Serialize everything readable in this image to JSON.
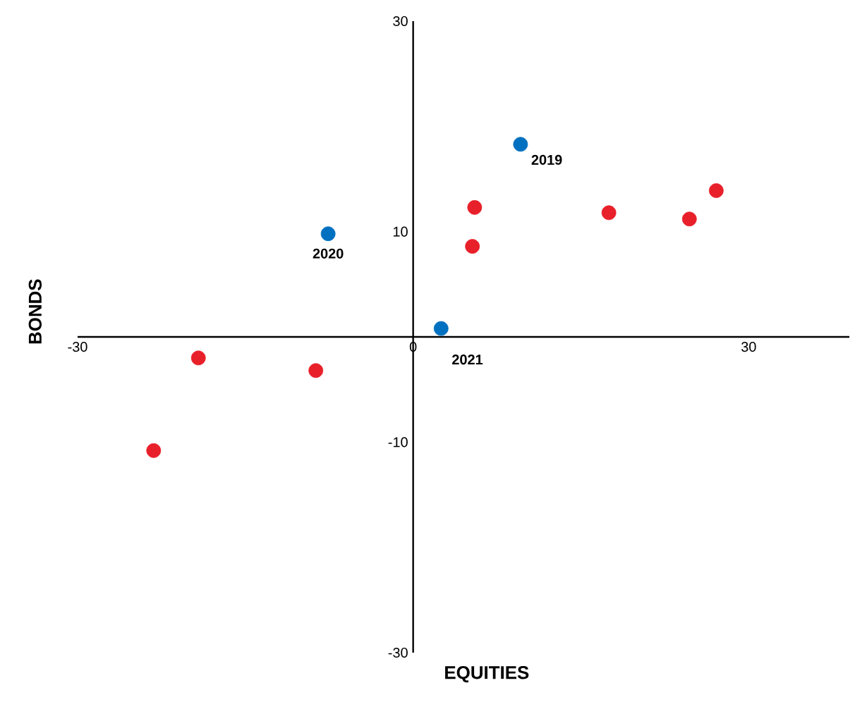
{
  "chart_data": {
    "type": "scatter",
    "xlabel": "EQUITIES",
    "ylabel": "BONDS",
    "xlim": [
      -30,
      39
    ],
    "ylim": [
      -30,
      30
    ],
    "xticks": [
      -30,
      0,
      30
    ],
    "yticks": [
      -30,
      -10,
      10,
      30
    ],
    "grid": false,
    "marker": "circle",
    "series": [
      {
        "color": "#0070c0",
        "x": [
          9.6,
          -7.6,
          2.5
        ],
        "values": [
          18.3,
          9.8,
          0.8
        ]
      },
      {
        "color": "#e8202a",
        "x": [
          5.5,
          5.3,
          17.5,
          24.7,
          27.1,
          -19.2,
          -8.7,
          -23.2
        ],
        "values": [
          12.3,
          8.6,
          11.8,
          11.2,
          13.9,
          -2.0,
          -3.2,
          -10.8
        ]
      }
    ],
    "annotations": [
      {
        "text": "2019",
        "x": 9.6,
        "y": 18.3
      },
      {
        "text": "2020",
        "x": -7.6,
        "y": 9.8
      },
      {
        "text": "2021",
        "x": 2.5,
        "y": 0.8
      }
    ]
  }
}
